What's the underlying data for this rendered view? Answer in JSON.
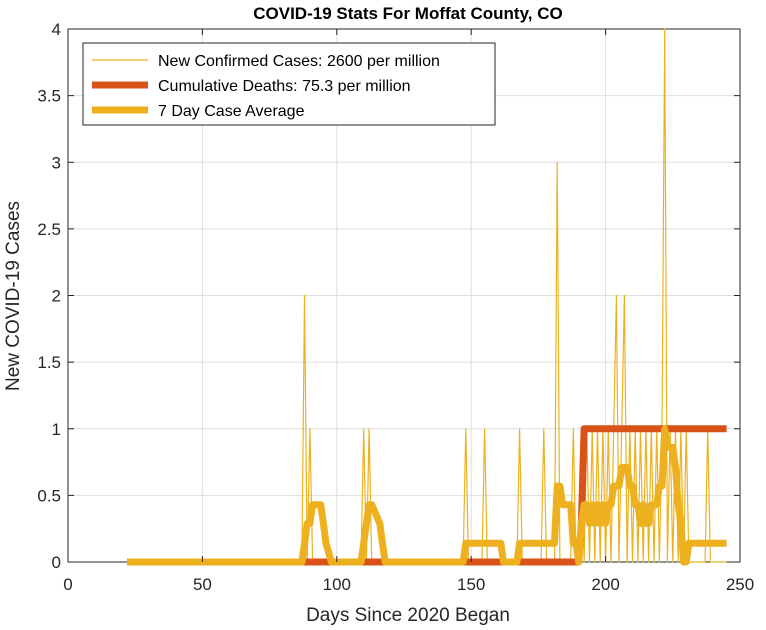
{
  "chart_data": {
    "type": "line",
    "title": "COVID-19 Stats For Moffat County, CO",
    "xlabel": "Days Since 2020 Began",
    "ylabel": "New COVID-19 Cases",
    "xlim": [
      0,
      250
    ],
    "ylim": [
      0,
      4
    ],
    "xticks": [
      0,
      50,
      100,
      150,
      200,
      250
    ],
    "yticks": [
      0,
      0.5,
      1,
      1.5,
      2,
      2.5,
      3,
      3.5,
      4
    ],
    "grid": true,
    "legend_position": "top-left",
    "series": [
      {
        "name": "New Confirmed Cases: 2600 per million",
        "color": "#EDB120",
        "line_width": "thin",
        "x": [
          22,
          87,
          88,
          89,
          90,
          91,
          109,
          110,
          111,
          112,
          113,
          147,
          148,
          149,
          154,
          155,
          156,
          167,
          168,
          169,
          176,
          177,
          178,
          181,
          182,
          183,
          187,
          188,
          189,
          190,
          191,
          192,
          193,
          194,
          195,
          196,
          197,
          198,
          199,
          200,
          201,
          202,
          203,
          204,
          205,
          206,
          207,
          208,
          209,
          210,
          211,
          212,
          213,
          214,
          215,
          216,
          217,
          218,
          219,
          220,
          221,
          222,
          223,
          224,
          225,
          226,
          227,
          228,
          229,
          230,
          231,
          237,
          238,
          239,
          245
        ],
        "y": [
          0,
          0,
          2,
          0,
          1,
          0,
          0,
          1,
          0,
          1,
          0,
          0,
          1,
          0,
          0,
          1,
          0,
          0,
          1,
          0,
          0,
          1,
          0,
          0,
          3,
          0,
          0,
          1,
          0,
          0,
          1,
          0,
          1,
          0,
          1,
          0,
          1,
          0,
          1,
          0,
          1,
          0,
          1,
          2,
          0,
          1,
          2,
          0,
          1,
          0,
          1,
          0,
          1,
          0,
          1,
          0,
          1,
          0,
          1,
          0,
          1,
          4,
          0,
          1,
          0,
          1,
          0,
          1,
          0,
          1,
          0,
          0,
          1,
          0,
          0
        ]
      },
      {
        "name": "Cumulative Deaths: 75.3 per million",
        "color": "#D95319",
        "line_width": "thick",
        "x": [
          22,
          190,
          191,
          192,
          245
        ],
        "y": [
          0,
          0,
          0.3,
          1,
          1
        ]
      },
      {
        "name": "7 Day Case Average",
        "color": "#EDB120",
        "line_width": "thick",
        "x": [
          22,
          87,
          88,
          89,
          90,
          91,
          94,
          95,
          96,
          98,
          109,
          110,
          111,
          112,
          113,
          116,
          117,
          118,
          120,
          147,
          148,
          149,
          154,
          155,
          156,
          160,
          161,
          162,
          167,
          168,
          169,
          175,
          176,
          177,
          178,
          181,
          182,
          183,
          184,
          185,
          186,
          187,
          188,
          189,
          190,
          191,
          192,
          193,
          194,
          195,
          196,
          197,
          198,
          199,
          200,
          201,
          202,
          203,
          204,
          205,
          206,
          207,
          208,
          209,
          210,
          211,
          212,
          213,
          214,
          215,
          216,
          217,
          218,
          219,
          220,
          221,
          222,
          223,
          224,
          225,
          226,
          227,
          228,
          229,
          230,
          231,
          232,
          237,
          238,
          239,
          245
        ],
        "y": [
          0,
          0,
          0.14,
          0.29,
          0.29,
          0.43,
          0.43,
          0.29,
          0.14,
          0,
          0,
          0.14,
          0.29,
          0.43,
          0.43,
          0.29,
          0.14,
          0,
          0,
          0,
          0.14,
          0.14,
          0.14,
          0.14,
          0.14,
          0.14,
          0.14,
          0,
          0,
          0.14,
          0.14,
          0.14,
          0.14,
          0.14,
          0.14,
          0.14,
          0.57,
          0.57,
          0.43,
          0.43,
          0.43,
          0.43,
          0.14,
          0.14,
          0,
          0.29,
          0.43,
          0.43,
          0.29,
          0.43,
          0.29,
          0.43,
          0.29,
          0.43,
          0.29,
          0.43,
          0.43,
          0.57,
          0.57,
          0.57,
          0.71,
          0.71,
          0.71,
          0.57,
          0.57,
          0.43,
          0.43,
          0.29,
          0.43,
          0.29,
          0.29,
          0.43,
          0.43,
          0.43,
          0.57,
          0.57,
          1.0,
          0.86,
          0.86,
          0.86,
          0.71,
          0.43,
          0.29,
          0,
          0,
          0.14,
          0.14,
          0.14,
          0.14,
          0.14,
          0.14
        ]
      }
    ]
  }
}
